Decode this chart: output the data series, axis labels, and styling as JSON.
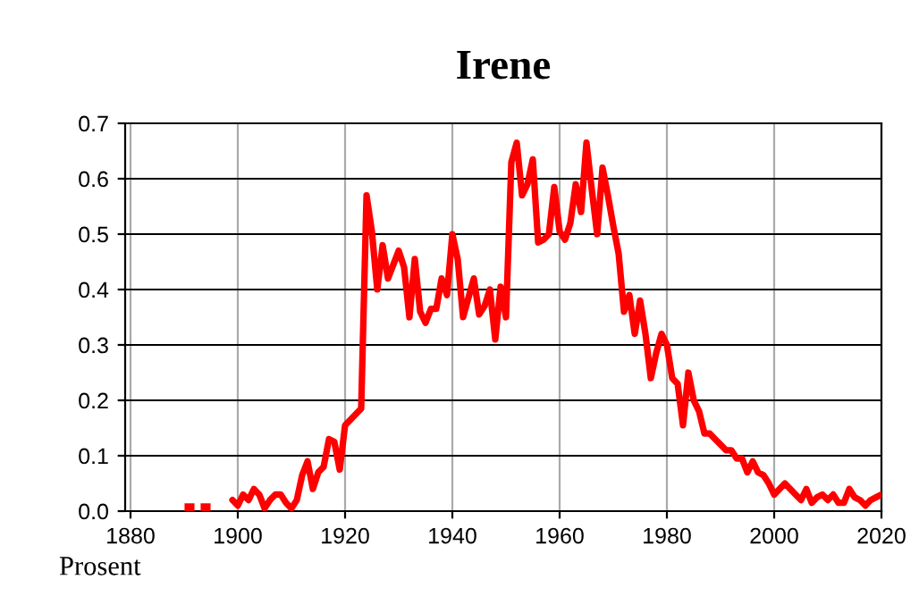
{
  "chart_data": {
    "type": "line",
    "title": "Irene",
    "ylabel": "Prosent",
    "x": [
      1891,
      1892,
      1893,
      1894,
      1895,
      1896,
      1897,
      1898,
      1899,
      1900,
      1901,
      1902,
      1903,
      1904,
      1905,
      1906,
      1907,
      1908,
      1909,
      1910,
      1911,
      1912,
      1913,
      1914,
      1915,
      1916,
      1917,
      1918,
      1919,
      1920,
      1921,
      1922,
      1923,
      1924,
      1925,
      1926,
      1927,
      1928,
      1929,
      1930,
      1931,
      1932,
      1933,
      1934,
      1935,
      1936,
      1937,
      1938,
      1939,
      1940,
      1941,
      1942,
      1943,
      1944,
      1945,
      1946,
      1947,
      1948,
      1949,
      1950,
      1951,
      1952,
      1953,
      1954,
      1955,
      1956,
      1957,
      1958,
      1959,
      1960,
      1961,
      1962,
      1963,
      1964,
      1965,
      1966,
      1967,
      1968,
      1969,
      1970,
      1971,
      1972,
      1973,
      1974,
      1975,
      1976,
      1977,
      1978,
      1979,
      1980,
      1981,
      1982,
      1983,
      1984,
      1985,
      1986,
      1987,
      1988,
      1989,
      1990,
      1991,
      1992,
      1993,
      1994,
      1995,
      1996,
      1997,
      1998,
      1999,
      2000,
      2001,
      2002,
      2003,
      2004,
      2005,
      2006,
      2007,
      2008,
      2009,
      2010,
      2011,
      2012,
      2013,
      2014,
      2015,
      2016,
      2017,
      2018,
      2019,
      2020
    ],
    "series": [
      {
        "color": "#ff0000",
        "values": [
          0.005,
          null,
          null,
          0.005,
          null,
          null,
          null,
          null,
          0.02,
          0.01,
          0.03,
          0.02,
          0.04,
          0.03,
          0.005,
          0.02,
          0.03,
          0.03,
          0.015,
          0.005,
          0.02,
          0.065,
          0.09,
          0.04,
          0.07,
          0.08,
          0.13,
          0.125,
          0.075,
          0.155,
          0.165,
          0.175,
          0.185,
          0.57,
          0.505,
          0.4,
          0.48,
          0.42,
          0.445,
          0.47,
          0.44,
          0.35,
          0.455,
          0.36,
          0.34,
          0.365,
          0.365,
          0.42,
          0.39,
          0.5,
          0.455,
          0.35,
          0.385,
          0.42,
          0.355,
          0.37,
          0.4,
          0.31,
          0.405,
          0.35,
          0.63,
          0.665,
          0.57,
          0.59,
          0.635,
          0.485,
          0.49,
          0.5,
          0.585,
          0.505,
          0.49,
          0.52,
          0.59,
          0.54,
          0.665,
          0.58,
          0.5,
          0.62,
          0.57,
          0.515,
          0.465,
          0.36,
          0.39,
          0.32,
          0.38,
          0.32,
          0.24,
          0.285,
          0.32,
          0.3,
          0.24,
          0.23,
          0.155,
          0.25,
          0.2,
          0.18,
          0.14,
          0.14,
          0.13,
          0.12,
          0.11,
          0.11,
          0.095,
          0.095,
          0.07,
          0.09,
          0.07,
          0.065,
          0.05,
          0.03,
          0.04,
          0.05,
          0.04,
          0.03,
          0.02,
          0.04,
          0.015,
          0.025,
          0.03,
          0.02,
          0.03,
          0.015,
          0.015,
          0.04,
          0.025,
          0.02,
          0.01,
          0.02,
          0.025,
          0.03
        ]
      }
    ],
    "xlim": [
      1879,
      2020
    ],
    "xticks": [
      1880,
      1900,
      1920,
      1940,
      1960,
      1980,
      2000,
      2020
    ],
    "ylim": [
      0,
      0.7
    ],
    "yticks": [
      {
        "value": 0,
        "label": "0.0"
      },
      {
        "value": 0.1,
        "label": "0.1"
      },
      {
        "value": 0.2,
        "label": "0.2"
      },
      {
        "value": 0.3,
        "label": "0.3"
      },
      {
        "value": 0.4,
        "label": "0.4"
      },
      {
        "value": 0.5,
        "label": "0.5"
      },
      {
        "value": 0.6,
        "label": "0.6"
      },
      {
        "value": 0.7,
        "label": "0.7"
      }
    ],
    "grid": true,
    "legend": false
  }
}
